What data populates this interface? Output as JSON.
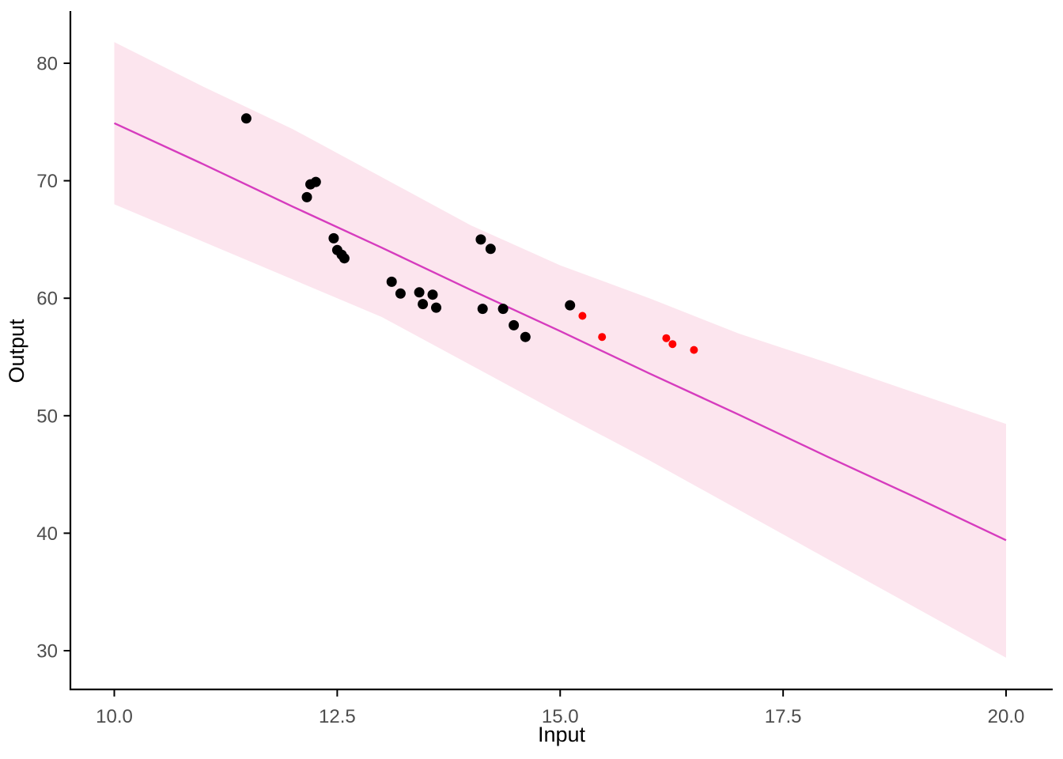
{
  "chart_data": {
    "type": "scatter",
    "title": "",
    "xlabel": "Input",
    "ylabel": "Output",
    "xlim": [
      9.4,
      20.55
    ],
    "ylim": [
      26.9,
      84.4
    ],
    "grid": false,
    "legend": "none",
    "x_ticks": {
      "values": [
        10.0,
        12.5,
        15.0,
        17.5,
        20.0
      ],
      "labels": [
        "10.0",
        "12.5",
        "15.0",
        "17.5",
        "20.0"
      ]
    },
    "y_ticks": {
      "values": [
        30,
        40,
        50,
        60,
        70,
        80
      ],
      "labels": [
        "30",
        "40",
        "50",
        "60",
        "70",
        "80"
      ]
    },
    "colors": {
      "axis_line": "#000000",
      "tick_label": "#4d4d4d",
      "axis_title": "#000000",
      "observed_points": "#000000",
      "highlighted_points": "#ff0000",
      "trend_line": "#d63cbe",
      "confidence_band": "#fce5ee",
      "background": "#ffffff"
    },
    "series": [
      {
        "name": "observed",
        "color": "#000000",
        "marker_radius": 6.5,
        "points": [
          [
            11.48,
            75.3
          ],
          [
            12.16,
            68.6
          ],
          [
            12.2,
            69.7
          ],
          [
            12.26,
            69.9
          ],
          [
            12.46,
            65.1
          ],
          [
            12.5,
            64.1
          ],
          [
            12.55,
            63.7
          ],
          [
            12.58,
            63.4
          ],
          [
            13.11,
            61.4
          ],
          [
            13.21,
            60.4
          ],
          [
            13.42,
            60.5
          ],
          [
            13.46,
            59.5
          ],
          [
            13.57,
            60.3
          ],
          [
            13.61,
            59.2
          ],
          [
            14.11,
            65.0
          ],
          [
            14.22,
            64.2
          ],
          [
            14.13,
            59.1
          ],
          [
            14.36,
            59.1
          ],
          [
            14.48,
            57.7
          ],
          [
            14.61,
            56.7
          ],
          [
            15.11,
            59.4
          ]
        ]
      },
      {
        "name": "highlighted",
        "color": "#ff0000",
        "marker_radius": 5,
        "points": [
          [
            15.25,
            58.5
          ],
          [
            15.47,
            56.7
          ],
          [
            16.19,
            56.6
          ],
          [
            16.26,
            56.1
          ],
          [
            16.5,
            55.6
          ]
        ]
      }
    ],
    "trend": {
      "name": "linear-fit-with-confidence-band",
      "line_color": "#d63cbe",
      "band_color": "#fce5ee",
      "x": [
        10,
        11,
        12,
        13,
        14,
        15,
        16,
        17,
        18,
        19,
        20
      ],
      "line": [
        74.9,
        71.4,
        67.8,
        64.3,
        60.7,
        57.2,
        53.6,
        50.1,
        46.5,
        43.0,
        39.4
      ],
      "band_upper": [
        81.8,
        78.0,
        74.4,
        70.3,
        66.2,
        62.8,
        60.0,
        57.0,
        54.5,
        51.9,
        49.3
      ],
      "band_lower": [
        68.0,
        64.8,
        61.6,
        58.4,
        54.3,
        50.2,
        46.2,
        42.0,
        37.8,
        33.6,
        29.4
      ]
    }
  }
}
